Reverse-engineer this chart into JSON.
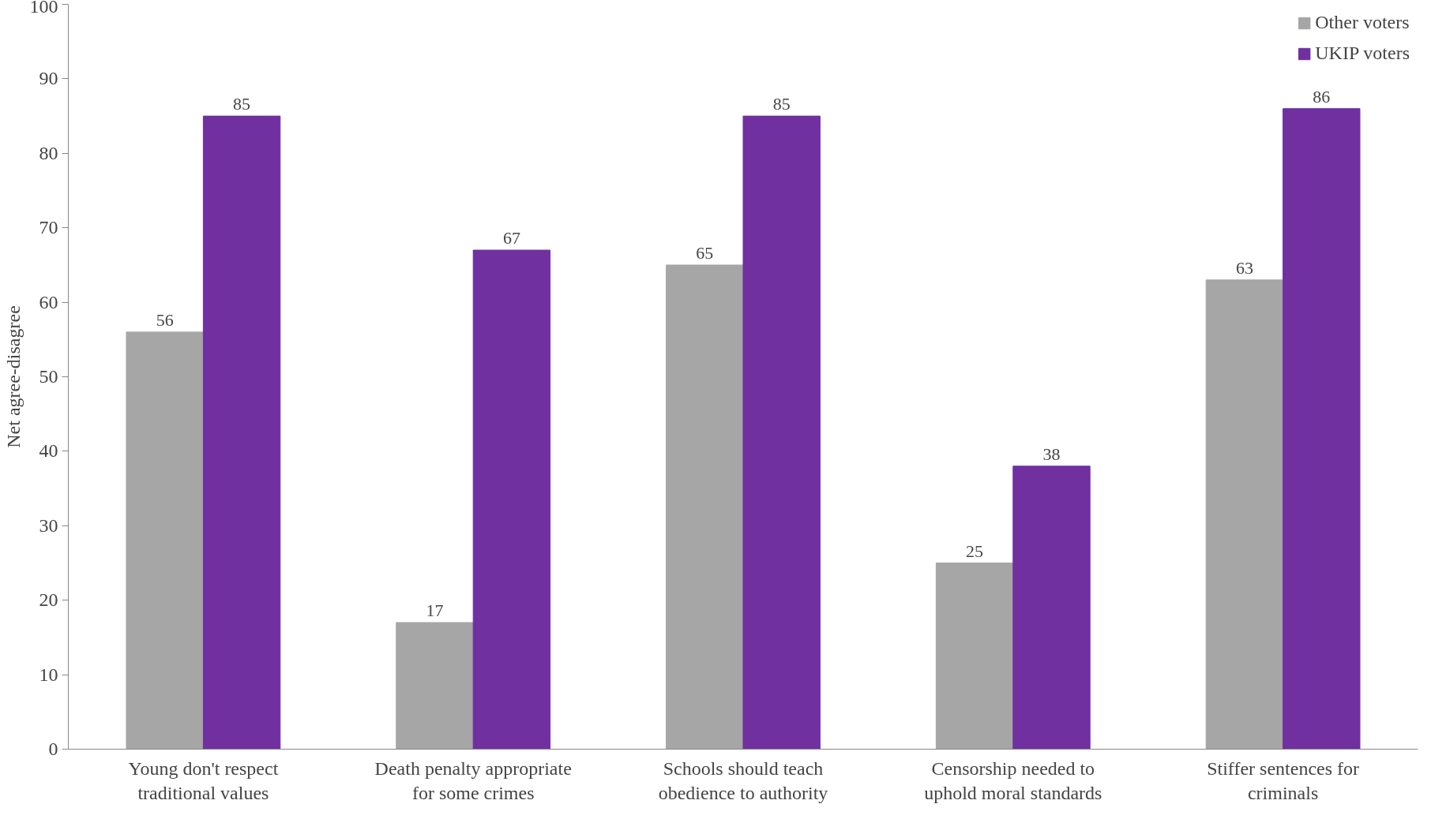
{
  "chart_data": {
    "type": "bar",
    "ylabel": "Net agree-disagree",
    "categories": [
      "Young don't respect traditional values",
      "Death penalty appropriate for some crimes",
      "Schools should teach obedience to authority",
      "Censorship needed to uphold moral standards",
      "Stiffer sentences for criminals"
    ],
    "series": [
      {
        "name": "Other voters",
        "color": "#a6a6a6",
        "values": [
          56,
          17,
          65,
          25,
          63
        ]
      },
      {
        "name": "UKIP voters",
        "color": "#7030a0",
        "values": [
          85,
          67,
          85,
          38,
          86
        ]
      }
    ],
    "ylim": [
      0,
      100
    ],
    "yticks": [
      0,
      10,
      20,
      30,
      40,
      50,
      60,
      70,
      80,
      90,
      100
    ],
    "grid": false,
    "legend": "top right",
    "data_labels": true
  }
}
